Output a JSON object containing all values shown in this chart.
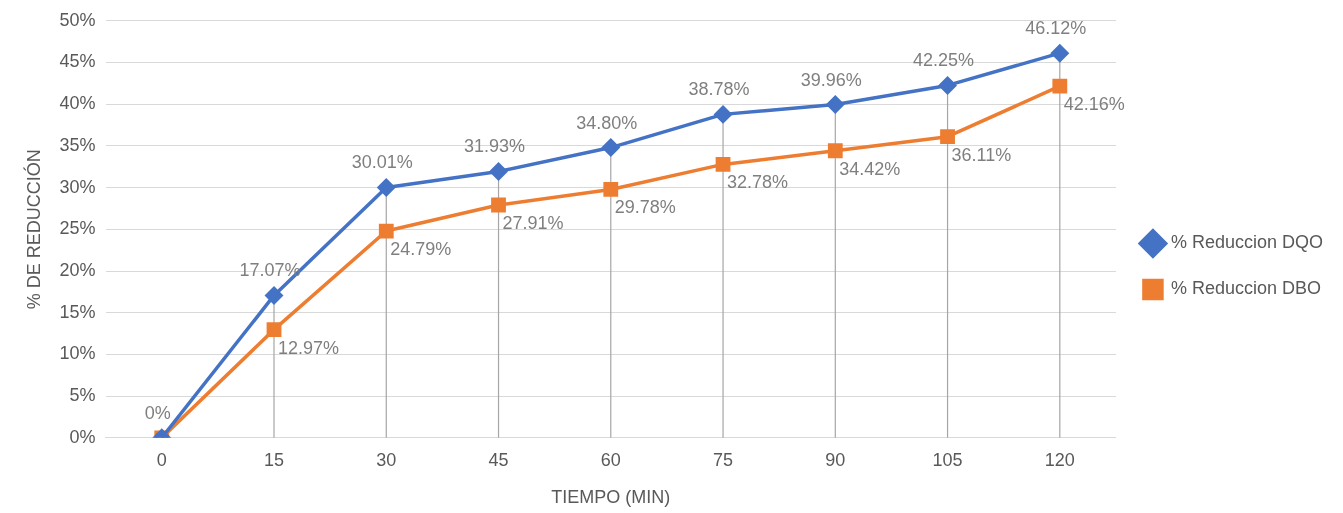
{
  "chart_data": {
    "type": "line",
    "xlabel": "TIEMPO (MIN)",
    "ylabel": "% DE REDUCCIÓN",
    "categories": [
      "0",
      "15",
      "30",
      "45",
      "60",
      "75",
      "90",
      "105",
      "120"
    ],
    "series": [
      {
        "name": "% Reduccion DQO",
        "color": "#4472c4",
        "marker": "diamond",
        "values": [
          0,
          17.07,
          30.01,
          31.93,
          34.8,
          38.78,
          39.96,
          42.25,
          46.12
        ],
        "value_labels": [
          "0%",
          "17.07%",
          "30.01%",
          "31.93%",
          "34.80%",
          "38.78%",
          "39.96%",
          "42.25%",
          "46.12%"
        ]
      },
      {
        "name": "% Reduccion DBO",
        "color": "#ed7d31",
        "marker": "square",
        "values": [
          0,
          12.97,
          24.79,
          27.91,
          29.78,
          32.78,
          34.42,
          36.11,
          42.16
        ],
        "value_labels": [
          null,
          "12.97%",
          "24.79%",
          "27.91%",
          "29.78%",
          "32.78%",
          "34.42%",
          "36.11%",
          "42.16%"
        ]
      }
    ],
    "ylim": [
      0,
      50
    ],
    "yticks": [
      {
        "value": 0,
        "label": "0%"
      },
      {
        "value": 5,
        "label": "5%"
      },
      {
        "value": 10,
        "label": "10%"
      },
      {
        "value": 15,
        "label": "15%"
      },
      {
        "value": 20,
        "label": "20%"
      },
      {
        "value": 25,
        "label": "25%"
      },
      {
        "value": 30,
        "label": "30%"
      },
      {
        "value": 35,
        "label": "35%"
      },
      {
        "value": 40,
        "label": "40%"
      },
      {
        "value": 45,
        "label": "45%"
      },
      {
        "value": 50,
        "label": "50%"
      }
    ],
    "grid": true,
    "legend": "right",
    "line_style": "solid"
  }
}
